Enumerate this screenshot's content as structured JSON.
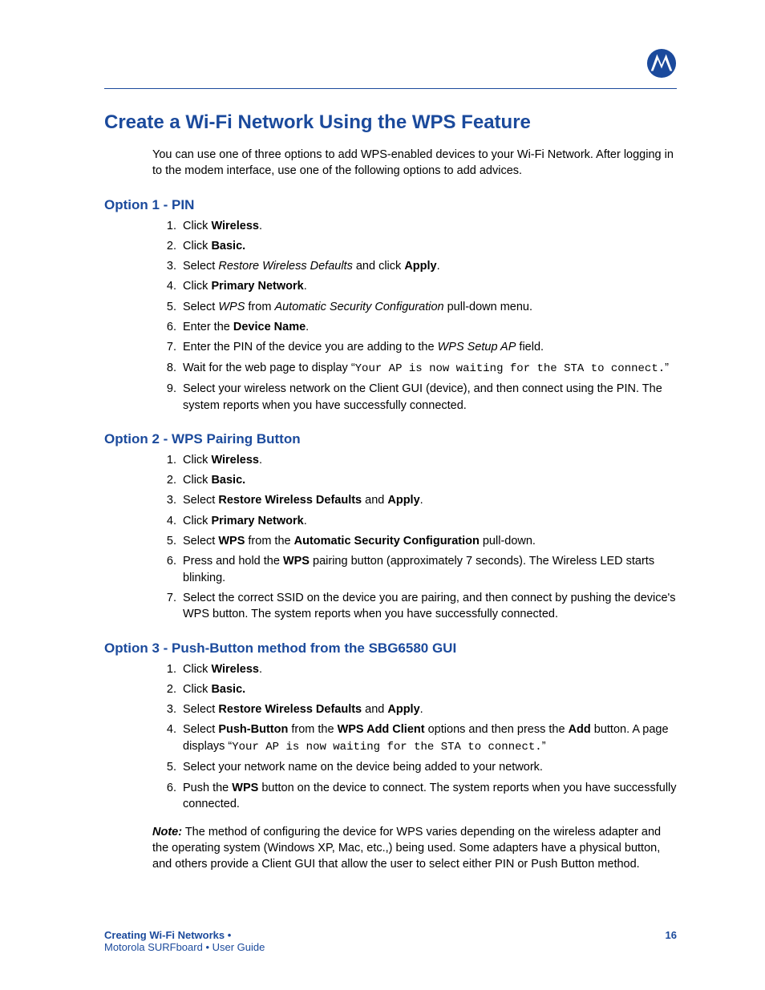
{
  "colors": {
    "accent": "#1b4a9c",
    "text": "#000000",
    "background": "#ffffff"
  },
  "title": "Create a Wi-Fi Network Using the WPS Feature",
  "intro": "You can use one of three options to add WPS-enabled devices to your Wi-Fi Network. After logging in to the modem interface, use one of the following options to add advices.",
  "option1": {
    "heading": "Option 1 - PIN",
    "steps": [
      "Click <b>Wireless</b>.",
      "Click <b>Basic.</b>",
      "Select <i>Restore Wireless Defaults</i> and click <b>Apply</b>.",
      "Click <b>Primary Network</b>.",
      "Select <i>WPS</i> from <i>Automatic Security Configuration</i> pull-down menu.",
      "Enter the <b>Device Name</b>.",
      "Enter the PIN of the device you are adding to the <i>WPS Setup AP</i> field.",
      "Wait for the web page to display “<span class='mono'>Your AP is now waiting for the STA to connect.</span>”",
      "Select your wireless network on the Client GUI (device), and then connect using the PIN. The system reports when you have successfully connected."
    ]
  },
  "option2": {
    "heading": "Option 2 - WPS Pairing Button",
    "steps": [
      "Click <b>Wireless</b>.",
      "Click <b>Basic.</b>",
      "Select <b>Restore Wireless Defaults</b> and <b>Apply</b>.",
      "Click <b>Primary Network</b>.",
      "Select <b>WPS</b> from the <b>Automatic Security Configuration</b> pull-down.",
      "Press and hold the <b>WPS</b> pairing button (approximately 7 seconds). The Wireless LED starts blinking.",
      "Select the correct SSID on the device you are pairing, and then connect by pushing the device's WPS button. The system reports when you have successfully connected."
    ]
  },
  "option3": {
    "heading": "Option 3 - Push-Button method from the SBG6580 GUI",
    "steps": [
      "Click <b>Wireless</b>.",
      "Click <b>Basic.</b>",
      "Select <b>Restore Wireless Defaults</b> and <b>Apply</b>.",
      "Select <b>Push-Button</b> from the <b>WPS Add Client</b> options and then press the <b>Add</b> button. A page displays “<span class='mono'>Your AP is now waiting for the STA to connect.</span>”",
      "Select your network name on the device being added to your network.",
      "Push the <b>WPS</b> button on the device to connect. The system reports when you have successfully connected."
    ]
  },
  "note": "<b><i>Note:</i></b> The method of configuring the device for WPS varies depending on the wireless adapter and the operating system (Windows XP, Mac, etc.,) being used. Some adapters have a physical button, and others provide a Client GUI that allow the user to select either PIN or Push Button method.",
  "footer": {
    "section": "Creating Wi-Fi Networks •",
    "guide": "Motorola SURFboard • User Guide",
    "page": "16"
  }
}
